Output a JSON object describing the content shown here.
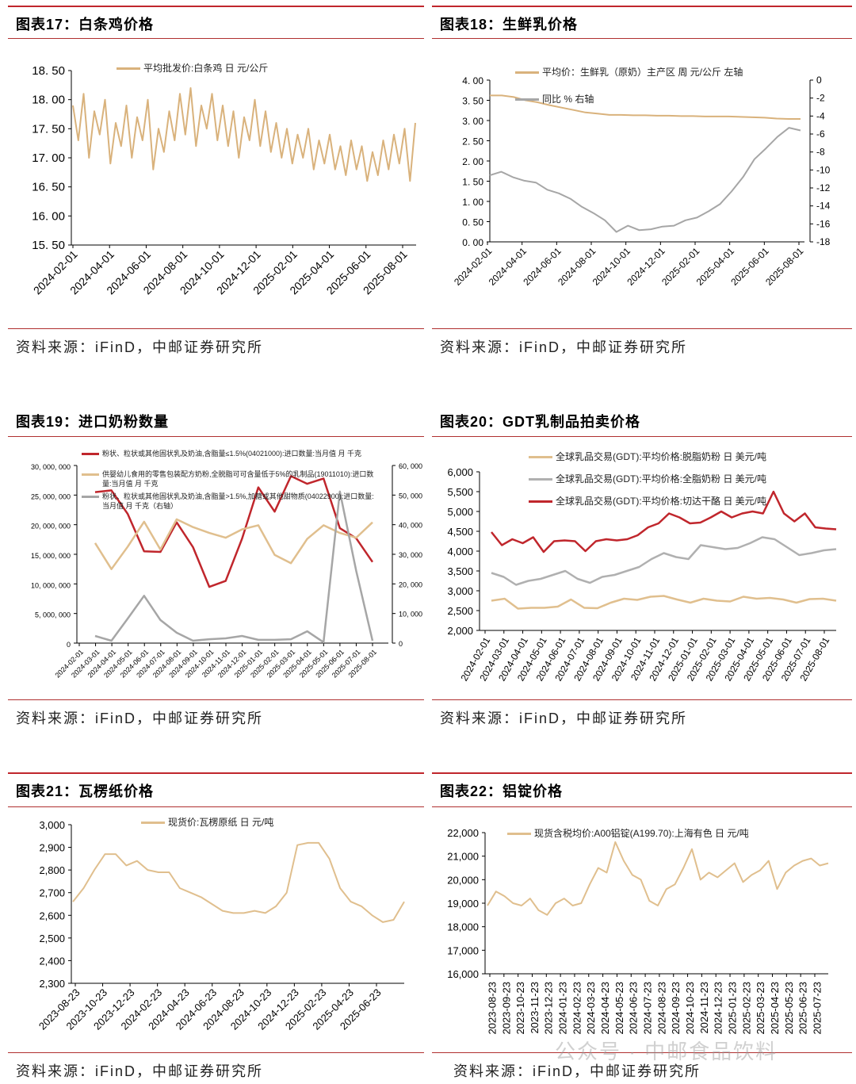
{
  "charts": [
    {
      "title": "图表17：白条鸡价格",
      "source": "资料来源：iFinD，中邮证券研究所",
      "y_ticks": [
        "18. 50",
        "18. 00",
        "17. 50",
        "17. 00",
        "16. 50",
        "16. 00",
        "15. 50"
      ],
      "y_range": [
        15.5,
        18.5
      ],
      "x_ticks": [
        "2024-02-01",
        "2024-04-01",
        "2024-06-01",
        "2024-08-01",
        "2024-10-01",
        "2024-12-01",
        "2025-02-01",
        "2025-04-01",
        "2025-06-01",
        "2025-08-01"
      ],
      "series": [
        {
          "name": "平均批发价:白条鸡 日 元/公斤",
          "color": "#d9b27c",
          "axis": "left",
          "values": [
            17.9,
            17.3,
            18.1,
            17.0,
            17.8,
            17.4,
            18.0,
            16.9,
            17.6,
            17.2,
            17.9,
            17.0,
            17.7,
            17.3,
            18.0,
            16.8,
            17.5,
            17.1,
            17.8,
            17.3,
            18.1,
            17.4,
            18.2,
            17.2,
            17.9,
            17.5,
            18.1,
            17.3,
            17.9,
            17.2,
            17.8,
            17.0,
            17.7,
            17.3,
            18.0,
            17.2,
            17.8,
            17.1,
            17.6,
            17.0,
            17.5,
            16.9,
            17.4,
            17.0,
            17.5,
            16.8,
            17.3,
            16.9,
            17.4,
            16.8,
            17.2,
            16.7,
            17.3,
            16.8,
            17.2,
            16.6,
            17.1,
            16.7,
            17.3,
            16.8,
            17.4,
            16.9,
            17.5,
            16.6,
            17.6
          ]
        }
      ]
    },
    {
      "title": "图表18：生鲜乳价格",
      "source": "资料来源：iFinD，中邮证券研究所",
      "y_ticks": [
        "4. 00",
        "3. 50",
        "3. 00",
        "2. 50",
        "2. 00",
        "1. 50",
        "1. 00",
        "0. 50",
        "0. 00"
      ],
      "y_range": [
        0,
        4
      ],
      "y2_ticks": [
        "0",
        "-2",
        "-4",
        "-6",
        "-8",
        "-10",
        "-12",
        "-14",
        "-16",
        "-18"
      ],
      "y2_range": [
        -18,
        0
      ],
      "x_ticks": [
        "2024-02-01",
        "2024-04-01",
        "2024-06-01",
        "2024-08-01",
        "2024-10-01",
        "2024-12-01",
        "2025-02-01",
        "2025-04-01",
        "2025-06-01",
        "2025-08-01"
      ],
      "series": [
        {
          "name": "平均价：生鲜乳（原奶）主产区 周 元/公斤 左轴",
          "color": "#d9b27c",
          "axis": "left",
          "values": [
            3.62,
            3.62,
            3.58,
            3.5,
            3.45,
            3.38,
            3.32,
            3.26,
            3.2,
            3.17,
            3.14,
            3.14,
            3.13,
            3.13,
            3.12,
            3.12,
            3.11,
            3.11,
            3.1,
            3.1,
            3.1,
            3.09,
            3.08,
            3.07,
            3.05,
            3.04,
            3.04
          ]
        },
        {
          "name": "同比 % 右轴",
          "color": "#a6a6a6",
          "axis": "right",
          "values": [
            -10.6,
            -10.2,
            -10.8,
            -11.2,
            -11.4,
            -12.2,
            -12.6,
            -13.2,
            -14.1,
            -14.8,
            -15.6,
            -16.9,
            -16.2,
            -16.7,
            -16.6,
            -16.3,
            -16.2,
            -15.6,
            -15.3,
            -14.6,
            -13.8,
            -12.4,
            -10.8,
            -8.8,
            -7.6,
            -6.3,
            -5.3,
            -5.6
          ]
        }
      ]
    },
    {
      "title": "图表19：进口奶粉数量",
      "source": "资料来源：iFinD，中邮证券研究所",
      "y_ticks": [
        "30, 000, 000",
        "25, 000, 000",
        "20, 000, 000",
        "15, 000, 000",
        "10, 000, 000",
        "5, 000, 000",
        "0"
      ],
      "y_range": [
        0,
        30000000
      ],
      "y2_ticks": [
        "60, 000",
        "50, 000",
        "40, 000",
        "30, 000",
        "20, 000",
        "10, 000",
        "0"
      ],
      "y2_range": [
        0,
        60000
      ],
      "x_ticks": [
        "2024-02-01",
        "2024-03-01",
        "2024-04-01",
        "2024-05-01",
        "2024-06-01",
        "2024-07-01",
        "2024-08-01",
        "2024-09-01",
        "2024-10-01",
        "2024-11-01",
        "2024-12-01",
        "2025-01-01",
        "2025-02-01",
        "2025-03-01",
        "2025-04-01",
        "2025-05-01",
        "2025-06-01",
        "2025-07-01",
        "2025-08-01"
      ],
      "series": [
        {
          "name": "粉状、粒状或其他固状乳及奶油,含脂量≤1.5%(04021000):进口数量:当月值 月 千克",
          "color": "#c0262c",
          "axis": "left",
          "values": [
            25500000,
            25800000,
            21800000,
            15500000,
            15400000,
            20400000,
            16200000,
            9500000,
            10500000,
            17600000,
            26300000,
            22200000,
            28200000,
            26900000,
            27800000,
            19400000,
            17700000,
            13700000
          ]
        },
        {
          "name": "供婴幼儿食用的零售包装配方奶粉,全脱脂可可含量低于5%的乳制品(19011010):进口数量:当月值 月 千克",
          "color": "#e0bf8e",
          "axis": "left",
          "values": [
            16900000,
            12500000,
            16300000,
            20500000,
            15800000,
            20900000,
            19600000,
            18600000,
            17800000,
            19200000,
            19900000,
            14900000,
            13500000,
            17600000,
            19900000,
            18600000,
            17800000,
            20400000
          ]
        },
        {
          "name": "粉状、粒状或其他固状乳及奶油,含脂量>1.5%,加糖或其他甜物质(04022900):进口数量:当月值 月 千克（右轴）",
          "color": "#a6a6a6",
          "axis": "right",
          "values": [
            2400,
            800,
            8300,
            16000,
            7800,
            3500,
            800,
            1300,
            1600,
            2400,
            1100,
            1100,
            1300,
            4000,
            300,
            51200,
            24400,
            800
          ]
        }
      ]
    },
    {
      "title": "图表20：GDT乳制品拍卖价格",
      "source": "资料来源：iFinD，中邮证券研究所",
      "y_ticks": [
        "6,000",
        "5,500",
        "5,000",
        "4,500",
        "4,000",
        "3,500",
        "3,000",
        "2,500",
        "2,000"
      ],
      "y_range": [
        2000,
        6000
      ],
      "x_ticks": [
        "2024-02-01",
        "2024-03-01",
        "2024-04-01",
        "2024-05-01",
        "2024-06-01",
        "2024-07-01",
        "2024-08-01",
        "2024-09-01",
        "2024-10-01",
        "2024-11-01",
        "2024-12-01",
        "2025-01-01",
        "2025-02-01",
        "2025-03-01",
        "2025-04-01",
        "2025-05-01",
        "2025-06-01",
        "2025-07-01",
        "2025-08-01"
      ],
      "series": [
        {
          "name": "全球乳品交易(GDT):平均价格:脱脂奶粉 日 美元/吨",
          "color": "#e0bf8e",
          "axis": "left",
          "values": [
            2750,
            2800,
            2550,
            2570,
            2570,
            2600,
            2780,
            2570,
            2560,
            2700,
            2800,
            2770,
            2850,
            2870,
            2780,
            2700,
            2800,
            2750,
            2730,
            2850,
            2800,
            2820,
            2780,
            2700,
            2790,
            2800,
            2750
          ]
        },
        {
          "name": "全球乳品交易(GDT):平均价格:全脂奶粉 日 美元/吨",
          "color": "#b0b0b0",
          "axis": "left",
          "values": [
            3450,
            3350,
            3150,
            3250,
            3300,
            3400,
            3500,
            3300,
            3200,
            3350,
            3400,
            3500,
            3600,
            3800,
            3950,
            3850,
            3800,
            4150,
            4100,
            4050,
            4080,
            4200,
            4350,
            4300,
            4100,
            3900,
            3950,
            4020,
            4050
          ]
        },
        {
          "name": "全球乳品交易(GDT):平均价格:切达干酪 日 美元/吨",
          "color": "#c0262c",
          "axis": "left",
          "values": [
            4480,
            4150,
            4300,
            4200,
            4350,
            3980,
            4250,
            4270,
            4250,
            4000,
            4250,
            4300,
            4270,
            4300,
            4400,
            4600,
            4700,
            4950,
            4850,
            4700,
            4720,
            4850,
            5000,
            4850,
            4950,
            5000,
            4950,
            5500,
            4950,
            4750,
            4950,
            4600,
            4570,
            4550
          ]
        }
      ]
    },
    {
      "title": "图表21：瓦楞纸价格",
      "source": "资料来源：iFinD，中邮证券研究所",
      "y_ticks": [
        "3,000",
        "2,900",
        "2,800",
        "2,700",
        "2,600",
        "2,500",
        "2,400",
        "2,300"
      ],
      "y_range": [
        2300,
        3000
      ],
      "x_ticks": [
        "2023-08-23",
        "2023-10-23",
        "2023-12-23",
        "2024-02-23",
        "2024-04-23",
        "2024-06-23",
        "2024-08-23",
        "2024-10-23",
        "2024-12-23",
        "2025-02-23",
        "2025-04-23",
        "2025-06-23"
      ],
      "series": [
        {
          "name": "现货价:瓦楞原纸 日 元/吨",
          "color": "#e0bf8e",
          "axis": "left",
          "values": [
            2660,
            2720,
            2800,
            2870,
            2870,
            2820,
            2840,
            2800,
            2790,
            2790,
            2720,
            2700,
            2680,
            2650,
            2620,
            2610,
            2610,
            2620,
            2610,
            2640,
            2700,
            2910,
            2920,
            2920,
            2850,
            2720,
            2660,
            2640,
            2600,
            2570,
            2580,
            2660
          ]
        }
      ]
    },
    {
      "title": "图表22：铝锭价格",
      "source": "资料来源：iFinD，中邮证券研究所",
      "y_ticks": [
        "22,000",
        "21,000",
        "20,000",
        "19,000",
        "18,000",
        "17,000",
        "16,000"
      ],
      "y_range": [
        16000,
        22000
      ],
      "x_ticks": [
        "2023-08-23",
        "2023-09-23",
        "2023-10-23",
        "2023-11-23",
        "2023-12-23",
        "2024-01-23",
        "2024-02-23",
        "2024-03-23",
        "2024-04-23",
        "2024-05-23",
        "2024-06-23",
        "2024-07-23",
        "2024-08-23",
        "2024-09-23",
        "2024-10-23",
        "2024-11-23",
        "2024-12-23",
        "2025-01-23",
        "2025-02-23",
        "2025-03-23",
        "2025-04-23",
        "2025-05-23",
        "2025-06-23",
        "2025-07-23"
      ],
      "series": [
        {
          "name": "现货含税均价:A00铝锭(A199.70):上海有色 日 元/吨",
          "color": "#e0bf8e",
          "axis": "left",
          "values": [
            18900,
            19500,
            19300,
            19000,
            18900,
            19200,
            18700,
            18500,
            19000,
            19200,
            18900,
            19000,
            19800,
            20500,
            20300,
            21600,
            20800,
            20200,
            20000,
            19100,
            18900,
            19600,
            19800,
            20500,
            21300,
            20000,
            20300,
            20100,
            20400,
            20700,
            19900,
            20200,
            20400,
            20800,
            19600,
            20300,
            20600,
            20800,
            20900,
            20600,
            20700
          ]
        }
      ]
    }
  ],
  "watermark": "公众号 · 中邮食品饮料"
}
